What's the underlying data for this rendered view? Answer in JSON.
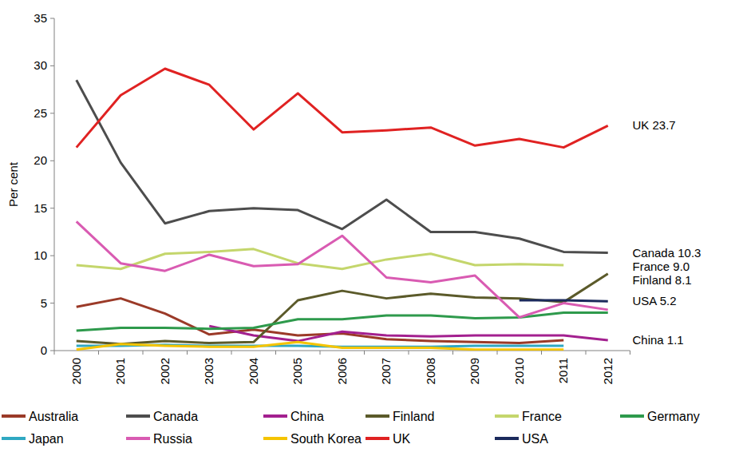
{
  "chart_data": {
    "type": "line",
    "y_label": "Per cent",
    "categories": [
      "2000",
      "2001",
      "2002",
      "2003",
      "2004",
      "2005",
      "2006",
      "2007",
      "2008",
      "2009",
      "2010",
      "2011",
      "2012"
    ],
    "ylim": [
      0,
      35
    ],
    "yticks": [
      0,
      5,
      10,
      15,
      20,
      25,
      30,
      35
    ],
    "grid": false,
    "legend": "bottom",
    "series": [
      {
        "name": "Australia",
        "color": "#9b3a28",
        "values": [
          4.6,
          5.5,
          3.9,
          1.7,
          2.2,
          1.6,
          1.8,
          1.2,
          1.0,
          0.9,
          0.8,
          1.1,
          null
        ]
      },
      {
        "name": "Canada",
        "color": "#4d4d4d",
        "values": [
          28.5,
          19.8,
          13.4,
          14.7,
          15.0,
          14.8,
          12.8,
          15.9,
          12.5,
          12.5,
          11.8,
          10.4,
          10.3
        ]
      },
      {
        "name": "China",
        "color": "#a3208f",
        "values": [
          null,
          null,
          null,
          2.6,
          1.6,
          1.0,
          2.0,
          1.6,
          1.5,
          1.6,
          1.6,
          1.6,
          1.1
        ]
      },
      {
        "name": "Finland",
        "color": "#5b5a2a",
        "values": [
          1.0,
          0.7,
          1.0,
          0.8,
          0.9,
          5.3,
          6.3,
          5.5,
          6.0,
          5.6,
          5.5,
          5.1,
          8.1
        ]
      },
      {
        "name": "France",
        "color": "#c4d66c",
        "values": [
          9.0,
          8.6,
          10.2,
          10.4,
          10.7,
          9.2,
          8.6,
          9.6,
          10.2,
          9.0,
          9.1,
          9.0,
          null
        ]
      },
      {
        "name": "Germany",
        "color": "#2e9a4c",
        "values": [
          2.1,
          2.4,
          2.4,
          2.3,
          2.4,
          3.3,
          3.3,
          3.7,
          3.7,
          3.4,
          3.5,
          4.0,
          4.0
        ]
      },
      {
        "name": "Japan",
        "color": "#2fa8c2",
        "values": [
          0.5,
          0.5,
          0.6,
          0.5,
          0.5,
          0.5,
          0.4,
          0.4,
          0.4,
          0.5,
          0.5,
          0.5,
          null
        ]
      },
      {
        "name": "Russia",
        "color": "#d95bb2",
        "values": [
          13.6,
          9.2,
          8.4,
          10.1,
          8.9,
          9.1,
          12.1,
          7.7,
          7.2,
          7.9,
          3.5,
          5.0,
          4.3
        ]
      },
      {
        "name": "South Korea",
        "color": "#f5c400",
        "values": [
          0.1,
          0.7,
          0.5,
          0.4,
          0.4,
          0.9,
          0.3,
          0.3,
          0.3,
          0.1,
          0.1,
          0.1,
          null
        ]
      },
      {
        "name": "UK",
        "color": "#e02222",
        "values": [
          21.4,
          26.9,
          29.7,
          28.0,
          23.3,
          27.1,
          23.0,
          23.2,
          23.5,
          21.6,
          22.3,
          21.4,
          23.7
        ]
      },
      {
        "name": "USA",
        "color": "#1b2a5c",
        "values": [
          null,
          null,
          null,
          null,
          null,
          null,
          null,
          null,
          null,
          null,
          5.3,
          5.3,
          5.2
        ]
      }
    ],
    "annotations": [
      {
        "text": "UK 23.7",
        "y": 23.7
      },
      {
        "text": "Canada 10.3",
        "y": 10.3
      },
      {
        "text": "France 9.0",
        "y": 9.0
      },
      {
        "text": "Finland 8.1",
        "y": 8.1
      },
      {
        "text": "USA 5.2",
        "y": 5.2
      },
      {
        "text": "China 1.1",
        "y": 1.1
      }
    ]
  }
}
